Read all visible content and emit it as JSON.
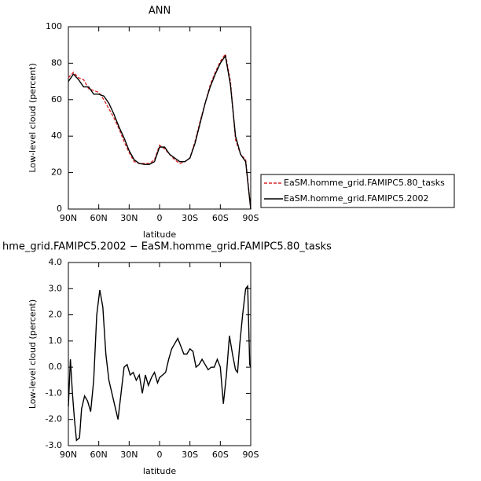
{
  "chart_data": [
    {
      "type": "line",
      "title": "ANN",
      "xlabel": "latitude",
      "ylabel": "Low-level cloud (percent)",
      "x": [
        90,
        85,
        80,
        75,
        70,
        65,
        60,
        55,
        50,
        45,
        40,
        35,
        30,
        25,
        20,
        15,
        10,
        5,
        0,
        -5,
        -10,
        -15,
        -20,
        -25,
        -30,
        -35,
        -40,
        -45,
        -50,
        -55,
        -60,
        -65,
        -70,
        -75,
        -80,
        -85,
        -90
      ],
      "series": [
        {
          "name": "EaSM.homme_grid.FAMIPC5.80_tasks",
          "color": "#d62728",
          "line_style": "dashed",
          "values": [
            72,
            75,
            72,
            71,
            66,
            65,
            64,
            60,
            55,
            50,
            44,
            37,
            31,
            26,
            25,
            25,
            25,
            27,
            35,
            33,
            30,
            27,
            25,
            26,
            28,
            37,
            48,
            58,
            68,
            75,
            81,
            85,
            70,
            38,
            30,
            27,
            0
          ]
        },
        {
          "name": "EaSM.homme_grid.FAMIPC5.2002",
          "color": "#000000",
          "line_style": "solid",
          "values": [
            70,
            74,
            71,
            67,
            67,
            63,
            63,
            62,
            58,
            52,
            45,
            39,
            32,
            27,
            25,
            24.5,
            24.5,
            26,
            34,
            34,
            30,
            28,
            26,
            26,
            28,
            36,
            47,
            58,
            67,
            74,
            80,
            84,
            68,
            40,
            30,
            26,
            0
          ]
        }
      ],
      "xlim": [
        90,
        -90
      ],
      "xticks": [
        {
          "value": 90,
          "label": "90N"
        },
        {
          "value": 60,
          "label": "60N"
        },
        {
          "value": 30,
          "label": "30N"
        },
        0,
        {
          "value": -30,
          "label": "30S"
        },
        {
          "value": -60,
          "label": "60S"
        },
        {
          "value": -90,
          "label": "90S"
        }
      ],
      "ylim": [
        0,
        100
      ],
      "yticks": [
        0,
        20,
        40,
        60,
        80,
        100
      ],
      "legend": "outside right"
    },
    {
      "type": "line",
      "title": "hme_grid.FAMIPC5.2002 − EaSM.homme_grid.FAMIPC5.80_tasks",
      "xlabel": "latitude",
      "ylabel": "Low-level cloud (percent)",
      "x": [
        90,
        88,
        86,
        84,
        82,
        79,
        77,
        74,
        71,
        68,
        65,
        62,
        59,
        56,
        53,
        50,
        47,
        44,
        41,
        38,
        35,
        32,
        29,
        26,
        23,
        20,
        17,
        14,
        11,
        8,
        5,
        2,
        0,
        -3,
        -6,
        -9,
        -12,
        -15,
        -18,
        -21,
        -24,
        -27,
        -30,
        -33,
        -36,
        -39,
        -42,
        -45,
        -48,
        -51,
        -54,
        -57,
        -60,
        -63,
        -66,
        -69,
        -72,
        -75,
        -77,
        -79,
        -82,
        -85,
        -87,
        -89,
        -90
      ],
      "values": [
        -1.5,
        0.3,
        -1.0,
        -2.0,
        -2.8,
        -2.7,
        -1.6,
        -1.1,
        -1.3,
        -1.7,
        -0.5,
        2.0,
        2.95,
        2.3,
        0.5,
        -0.5,
        -1.0,
        -1.5,
        -2.0,
        -1.0,
        0.0,
        0.1,
        -0.3,
        -0.2,
        -0.5,
        -0.3,
        -1.0,
        -0.3,
        -0.7,
        -0.4,
        -0.2,
        -0.6,
        -0.4,
        -0.3,
        -0.2,
        0.3,
        0.7,
        0.9,
        1.1,
        0.8,
        0.5,
        0.5,
        0.7,
        0.6,
        0.0,
        0.1,
        0.3,
        0.1,
        -0.1,
        0.0,
        0.0,
        0.3,
        0.0,
        -1.4,
        -0.3,
        1.2,
        0.5,
        -0.1,
        -0.2,
        0.8,
        2.0,
        3.0,
        3.1,
        0.1,
        0.0
      ],
      "color": "#000000",
      "xlim": [
        90,
        -90
      ],
      "xticks": [
        {
          "value": 90,
          "label": "90N"
        },
        {
          "value": 60,
          "label": "60N"
        },
        {
          "value": 30,
          "label": "30N"
        },
        0,
        {
          "value": -30,
          "label": "30S"
        },
        {
          "value": -60,
          "label": "60S"
        },
        {
          "value": -90,
          "label": "90S"
        }
      ],
      "ylim": [
        -3,
        4
      ],
      "yticks": [
        {
          "value": -3,
          "label": "-3.0"
        },
        {
          "value": -2,
          "label": "-2.0"
        },
        {
          "value": -1,
          "label": "-1.0"
        },
        {
          "value": 0,
          "label": "0.0"
        },
        {
          "value": 1,
          "label": "1.0"
        },
        {
          "value": 2,
          "label": "2.0"
        },
        {
          "value": 3,
          "label": "3.0"
        },
        {
          "value": 4,
          "label": "4.0"
        }
      ]
    }
  ]
}
